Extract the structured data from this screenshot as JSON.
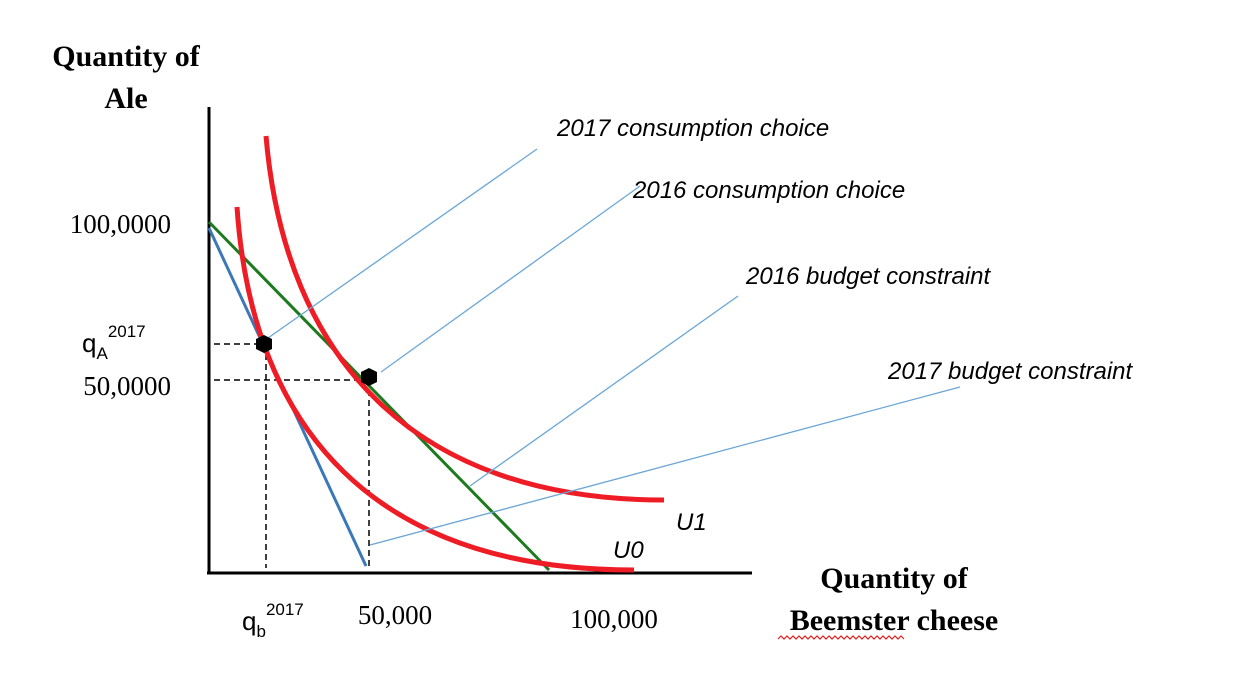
{
  "axes": {
    "y_title_line1": "Quantity of",
    "y_title_line2": "Ale",
    "x_title_line1": "Quantity of",
    "x_title_line2": "Beemster cheese"
  },
  "ticks": {
    "y_100k": "100,0000",
    "y_50k": "50,0000",
    "qA_base": "q",
    "qA_sub": "A",
    "qA_sup": "2017",
    "x_50k": "50,000",
    "x_100k": "100,000",
    "qb_base": "q",
    "qb_sub": "b",
    "qb_sup": "2017"
  },
  "annotations": {
    "c2017": "2017  consumption choice",
    "c2016": "2016  consumption choice",
    "b2016": "2016  budget constraint",
    "b2017": "2017  budget constraint"
  },
  "curves": {
    "u1": "U1",
    "u0": "U0"
  },
  "colors": {
    "indifference": "#ee1c25",
    "budget_2016": "#1e7a1e",
    "budget_2017": "#3a78b8",
    "leader": "#6aa6d6"
  }
}
